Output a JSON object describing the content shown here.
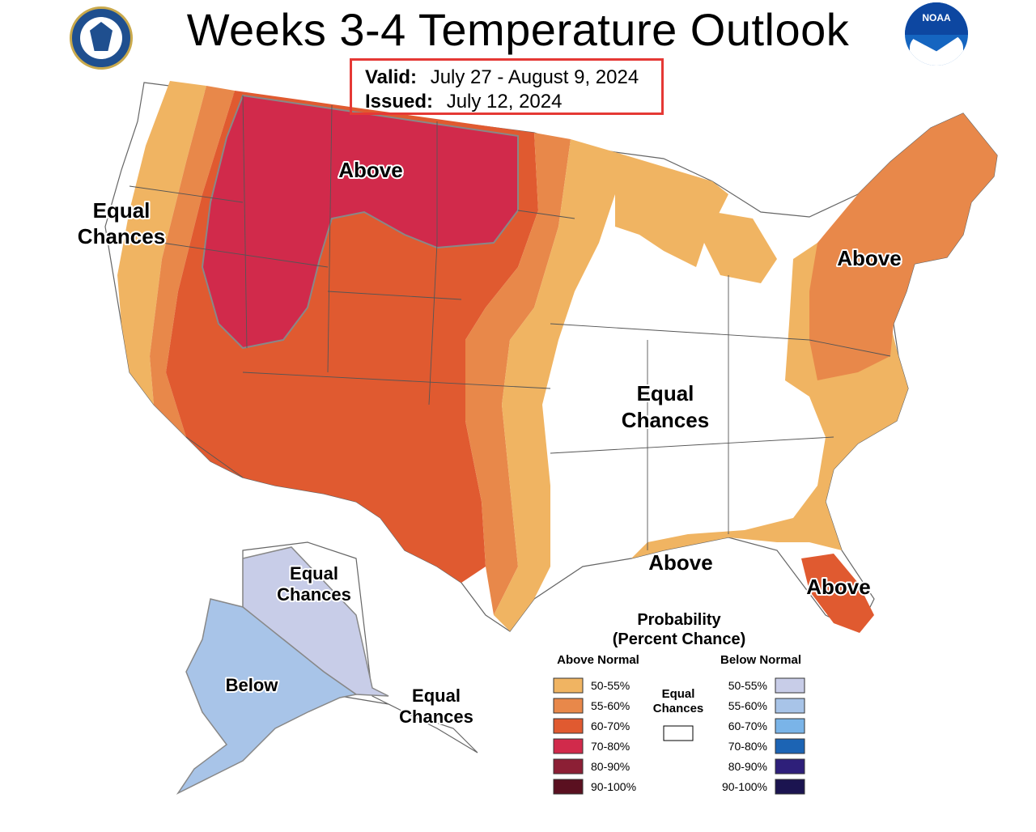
{
  "title": "Weeks 3-4 Temperature Outlook",
  "validity": {
    "valid_label": "Valid:",
    "valid_dates": "July 27 - August 9, 2024",
    "issued_label": "Issued:",
    "issued_date": "July 12, 2024"
  },
  "logos": {
    "left": "doc-seal-icon",
    "right_text": "NOAA"
  },
  "map_labels": {
    "west_coast_l1": "Equal",
    "west_coast_l2": "Chances",
    "northern_rockies": "Above",
    "northeast": "Above",
    "central_l1": "Equal",
    "central_l2": "Chances",
    "gulf_coast": "Above",
    "florida": "Above",
    "alaska_north_l1": "Equal",
    "alaska_north_l2": "Chances",
    "alaska_west": "Below",
    "alaska_south_l1": "Equal",
    "alaska_south_l2": "Chances"
  },
  "legend": {
    "title_l1": "Probability",
    "title_l2": "(Percent Chance)",
    "above_header": "Above Normal",
    "below_header": "Below Normal",
    "ec_l1": "Equal",
    "ec_l2": "Chances",
    "ec_color": "#ffffff",
    "above": [
      {
        "label": "50-55%",
        "color": "#f0b462"
      },
      {
        "label": "55-60%",
        "color": "#e8884a"
      },
      {
        "label": "60-70%",
        "color": "#e05a30"
      },
      {
        "label": "70-80%",
        "color": "#d12a4b"
      },
      {
        "label": "80-90%",
        "color": "#8c1f35"
      },
      {
        "label": "90-100%",
        "color": "#5a1020"
      }
    ],
    "below": [
      {
        "label": "50-55%",
        "color": "#c8cde8"
      },
      {
        "label": "55-60%",
        "color": "#a8c4e8"
      },
      {
        "label": "60-70%",
        "color": "#7ab4e8"
      },
      {
        "label": "70-80%",
        "color": "#1c64b4"
      },
      {
        "label": "80-90%",
        "color": "#2e1f7a"
      },
      {
        "label": "90-100%",
        "color": "#1b1450"
      }
    ]
  }
}
